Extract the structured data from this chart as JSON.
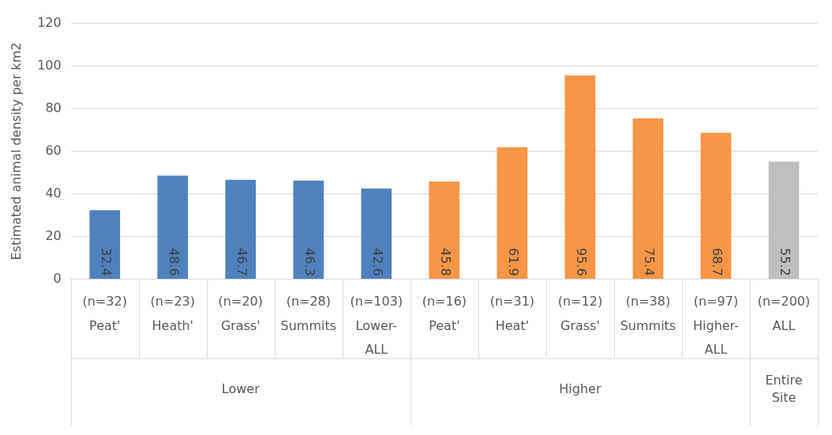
{
  "chart_data": {
    "type": "bar",
    "ylabel": "Estimated animal density per km2",
    "categories": [
      "(n=32)\nPeat'",
      "(n=23)\nHeath'",
      "(n=20)\nGrass'",
      "(n=28)\nSummits",
      "(n=103)\nLower-\nALL",
      "(n=16)\nPeat'",
      "(n=31)\nHeat'",
      "(n=12)\nGrass'",
      "(n=38)\nSummits",
      "(n=97)\nHigher-\nALL",
      "(n=200)\nALL"
    ],
    "values": [
      32.4,
      48.6,
      46.7,
      46.3,
      42.6,
      45.8,
      61.9,
      95.6,
      75.4,
      68.7,
      55.2
    ],
    "colors": [
      "#4f81bd",
      "#4f81bd",
      "#4f81bd",
      "#4f81bd",
      "#4f81bd",
      "#f79646",
      "#f79646",
      "#f79646",
      "#f79646",
      "#f79646",
      "#bfbfbf"
    ],
    "annotations": [
      "Lower",
      "Higher",
      "Entire\nSite"
    ],
    "ylim": [
      0,
      120
    ],
    "yticks": [
      0,
      20,
      40,
      60,
      80,
      100,
      120
    ],
    "grid": "y",
    "data_labels": true
  }
}
